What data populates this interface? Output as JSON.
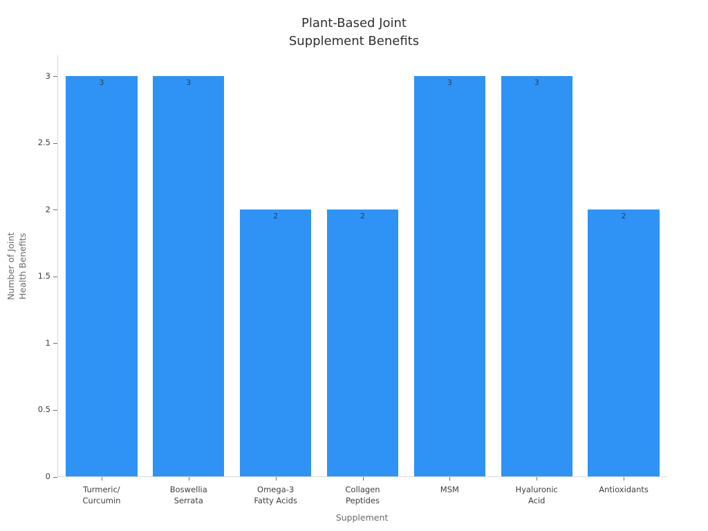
{
  "chart_data": {
    "type": "bar",
    "title": "Plant-Based Joint\nSupplement Benefits",
    "xlabel": "Supplement",
    "ylabel": "Number of Joint\nHealth Benefits",
    "categories": [
      "Turmeric/\nCurcumin",
      "Boswellia\nSerrata",
      "Omega-3\nFatty Acids",
      "Collagen\nPeptides",
      "MSM",
      "Hyaluronic\nAcid",
      "Antioxidants"
    ],
    "values": [
      3,
      3,
      2,
      2,
      3,
      3,
      2
    ],
    "bar_value_labels": [
      "3",
      "3",
      "2",
      "2",
      "3",
      "3",
      "2"
    ],
    "yticks": [
      0,
      0.5,
      1,
      1.5,
      2,
      2.5,
      3
    ],
    "ytick_labels": [
      "0",
      "0.5",
      "1",
      "1.5",
      "2",
      "2.5",
      "3"
    ],
    "ylim": [
      0,
      3.16
    ],
    "grid": false,
    "legend": false,
    "colors": {
      "bar": "#2e93f5",
      "bar_value_label": "#2a3f5f",
      "axis_line": "#d9d9d9",
      "tick_mark": "#6e6e6e",
      "tick_label": "#3e3e3e",
      "axis_title": "#6a6a6a",
      "title": "#2f2f2f",
      "background": "#ffffff"
    }
  }
}
